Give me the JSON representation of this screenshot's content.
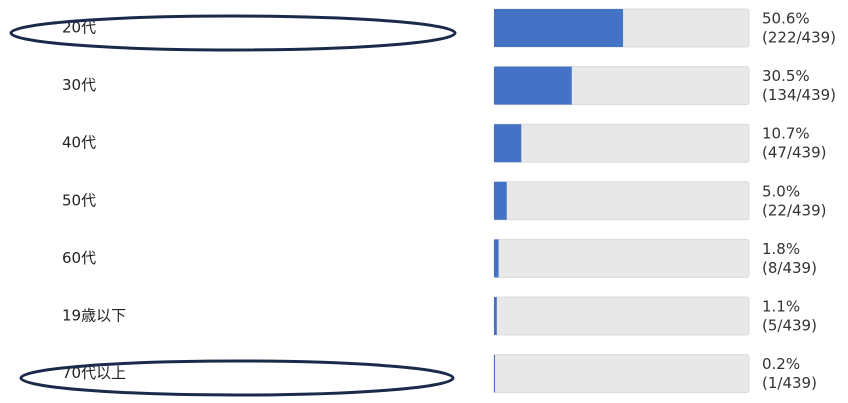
{
  "chart_data": {
    "type": "bar",
    "orientation": "horizontal",
    "categories": [
      "20代",
      "30代",
      "40代",
      "50代",
      "60代",
      "19歳以下",
      "70代以上"
    ],
    "values": [
      50.6,
      30.5,
      10.7,
      5.0,
      1.8,
      1.1,
      0.2
    ],
    "value_labels": [
      "50.6%",
      "30.5%",
      "10.7%",
      "5.0%",
      "1.8%",
      "1.1%",
      "0.2%"
    ],
    "count_labels": [
      "(222/439)",
      "(134/439)",
      "(47/439)",
      "(22/439)",
      "(8/439)",
      "(5/439)",
      "(1/439)"
    ],
    "color": "#4472c4",
    "track_color": "#e8e8e8",
    "xlim": [
      0,
      100
    ]
  }
}
